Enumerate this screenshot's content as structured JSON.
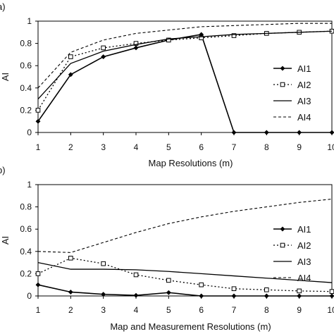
{
  "chart_data": [
    {
      "type": "line",
      "panel_label": "a)",
      "xlabel": "Map Resolutions (m)",
      "ylabel": "AI",
      "x": [
        1,
        2,
        3,
        4,
        5,
        6,
        7,
        8,
        9,
        10
      ],
      "xlim": [
        1,
        10
      ],
      "ylim": [
        0,
        1
      ],
      "xticks": [
        "1",
        "2",
        "3",
        "4",
        "5",
        "6",
        "7",
        "8",
        "9",
        "10"
      ],
      "yticks": [
        "0",
        "0.2",
        "0.4",
        "0.6",
        "0.8",
        "1"
      ],
      "ytick_values": [
        0,
        0.2,
        0.4,
        0.6,
        0.8,
        1
      ],
      "legend_position": "right",
      "grid": false,
      "series": [
        {
          "name": "AI1",
          "style": "solid-diamond",
          "values": [
            0.1,
            0.52,
            0.68,
            0.76,
            0.83,
            0.88,
            0,
            0,
            0,
            0
          ]
        },
        {
          "name": "AI2",
          "style": "dotted-square",
          "values": [
            0.2,
            0.68,
            0.76,
            0.8,
            0.83,
            0.85,
            0.87,
            0.89,
            0.9,
            0.91
          ]
        },
        {
          "name": "AI3",
          "style": "solid",
          "values": [
            0.3,
            0.62,
            0.73,
            0.79,
            0.84,
            0.86,
            0.88,
            0.89,
            0.9,
            0.91
          ]
        },
        {
          "name": "AI4",
          "style": "dashed",
          "values": [
            0.4,
            0.72,
            0.83,
            0.89,
            0.92,
            0.95,
            0.96,
            0.97,
            0.98,
            0.98
          ]
        }
      ]
    },
    {
      "type": "line",
      "panel_label": "b)",
      "xlabel": "Map and Measurement Resolutions (m)",
      "ylabel": "AI",
      "x": [
        1,
        2,
        3,
        4,
        5,
        6,
        7,
        8,
        9,
        10
      ],
      "xlim": [
        1,
        10
      ],
      "ylim": [
        0,
        1
      ],
      "xticks": [
        "1",
        "2",
        "3",
        "4",
        "5",
        "6",
        "7",
        "8",
        "9",
        "10"
      ],
      "yticks": [
        "0",
        "0.2",
        "0.4",
        "0.6",
        "0.8",
        "1"
      ],
      "ytick_values": [
        0,
        0.2,
        0.4,
        0.6,
        0.8,
        1
      ],
      "legend_position": "right",
      "grid": false,
      "series": [
        {
          "name": "AI1",
          "style": "solid-diamond",
          "values": [
            0.1,
            0.035,
            0.015,
            0.005,
            0.03,
            0,
            0,
            0,
            0,
            0
          ]
        },
        {
          "name": "AI2",
          "style": "dotted-square",
          "values": [
            0.2,
            0.34,
            0.29,
            0.19,
            0.14,
            0.1,
            0.065,
            0.055,
            0.045,
            0.04
          ]
        },
        {
          "name": "AI3",
          "style": "solid",
          "values": [
            0.3,
            0.24,
            0.24,
            0.235,
            0.22,
            0.2,
            0.18,
            0.16,
            0.14,
            0.12
          ]
        },
        {
          "name": "AI4",
          "style": "dashed",
          "values": [
            0.4,
            0.39,
            0.48,
            0.57,
            0.65,
            0.71,
            0.76,
            0.8,
            0.84,
            0.87
          ]
        }
      ]
    }
  ]
}
